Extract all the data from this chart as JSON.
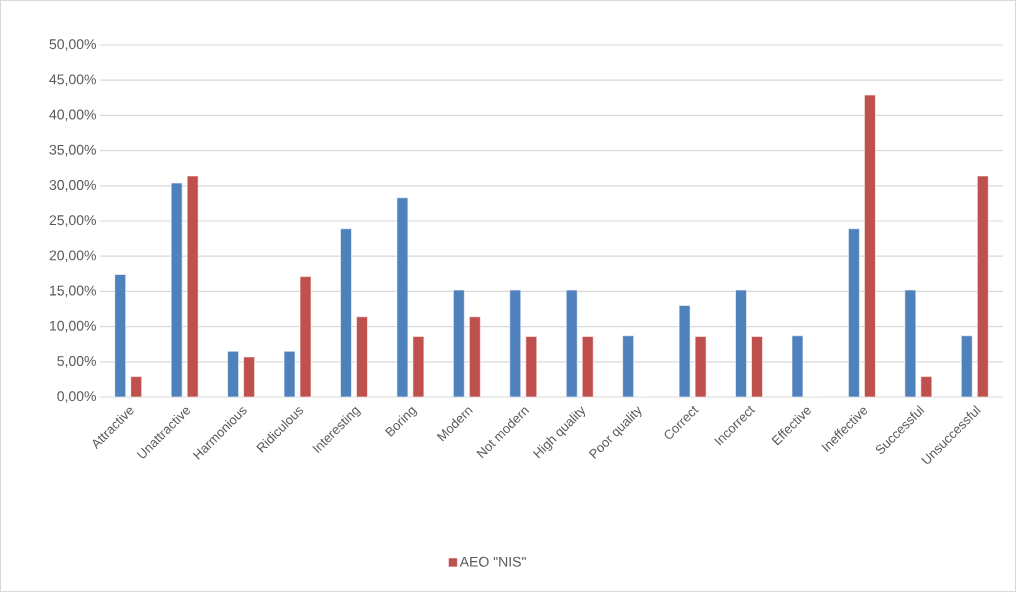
{
  "chart_data": {
    "type": "bar",
    "categories": [
      "Attractive",
      "Unattractive",
      "Harmonious",
      "Ridiculous",
      "Interesting",
      "Boring",
      "Modern",
      "Not modern",
      "High quality",
      "Poor quality",
      "Correct",
      "Incorrect",
      "Effective",
      "Ineffective",
      "Successful",
      "Unsuccessful"
    ],
    "series": [
      {
        "color": "#4f81bd",
        "values": [
          17.4,
          30.4,
          6.5,
          6.5,
          23.9,
          28.3,
          15.2,
          15.2,
          15.2,
          8.7,
          13.0,
          15.2,
          8.7,
          23.9,
          15.2,
          8.7
        ]
      },
      {
        "name": "AEO \"NIS\"",
        "color": "#c0504d",
        "values": [
          2.9,
          31.4,
          5.7,
          17.1,
          11.4,
          8.6,
          11.4,
          8.6,
          8.6,
          0,
          8.6,
          8.6,
          0,
          42.9,
          2.9,
          31.4
        ]
      }
    ],
    "ylim": [
      0,
      50
    ],
    "yticks": [
      {
        "value": 0,
        "label": "0,00%"
      },
      {
        "value": 5,
        "label": "5,00%"
      },
      {
        "value": 10,
        "label": "10,00%"
      },
      {
        "value": 15,
        "label": "15,00%"
      },
      {
        "value": 20,
        "label": "20,00%"
      },
      {
        "value": 25,
        "label": "25,00%"
      },
      {
        "value": 30,
        "label": "30,00%"
      },
      {
        "value": 35,
        "label": "35,00%"
      },
      {
        "value": 40,
        "label": "40,00%"
      },
      {
        "value": 45,
        "label": "45,00%"
      },
      {
        "value": 50,
        "label": "50,00%"
      }
    ],
    "grid": "y",
    "legend": "bottom"
  }
}
